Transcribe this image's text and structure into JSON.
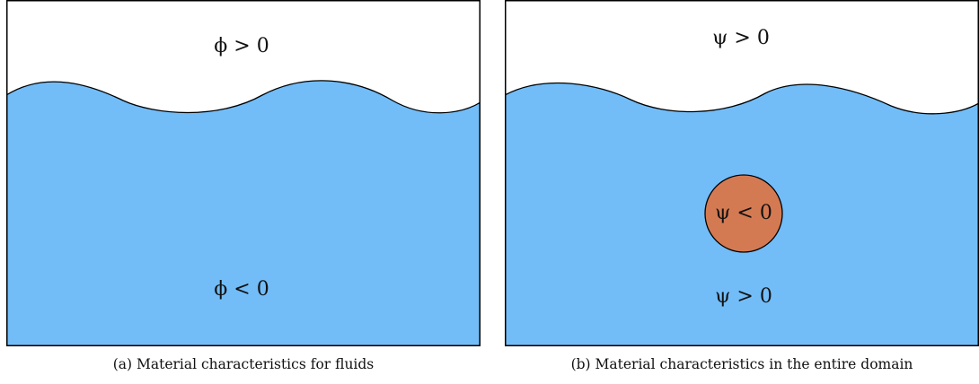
{
  "colors": {
    "fluid": "#72bdf8",
    "solid": "#d47a52",
    "outline": "#000000",
    "background": "#ffffff"
  },
  "panels": [
    {
      "above_label": "ϕ > 0",
      "below_label": "ϕ < 0",
      "caption": "(a) Material characteristics for fluids"
    },
    {
      "above_label": "ψ > 0",
      "circle_label": "ψ < 0",
      "below_label": "ψ > 0",
      "caption": "(b) Material characteristics in the entire domain"
    }
  ]
}
